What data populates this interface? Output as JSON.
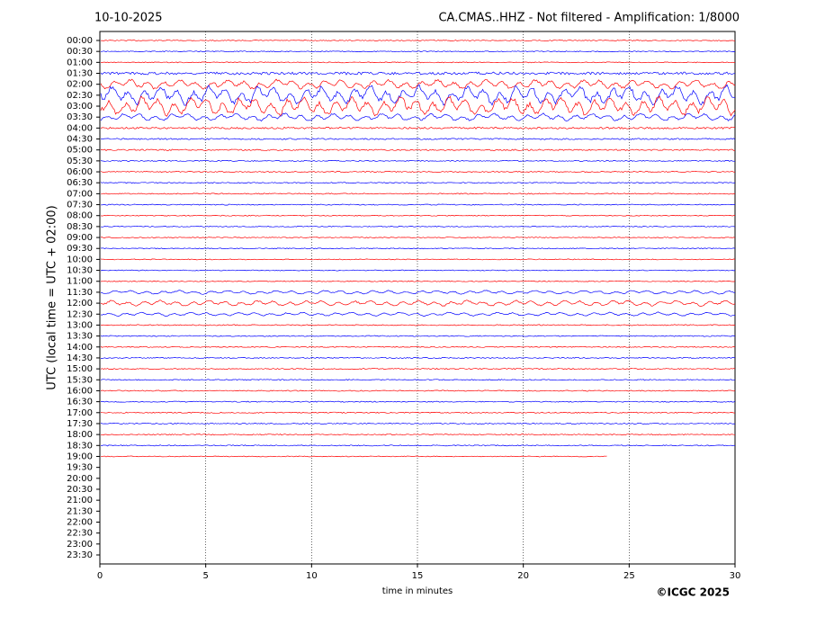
{
  "chart_data": {
    "type": "helicorder",
    "title_left": "10-10-2025",
    "title": "CA.CMAS..HHZ - Not filtered - Amplification: 1/8000",
    "y_label": "UTC (local time = UTC + 02:00)",
    "x_label": "time in minutes",
    "credit": "©ICGC 2025",
    "xlim": [
      0,
      30
    ],
    "xticks": [
      0,
      5,
      10,
      15,
      20,
      25,
      30
    ],
    "grid": true,
    "trace_colors": [
      "#ff0000",
      "#0000ff"
    ],
    "categories": [
      "00:00",
      "00:30",
      "01:00",
      "01:30",
      "02:00",
      "02:30",
      "03:00",
      "03:30",
      "04:00",
      "04:30",
      "05:00",
      "05:30",
      "06:00",
      "06:30",
      "07:00",
      "07:30",
      "08:00",
      "08:30",
      "09:00",
      "09:30",
      "10:00",
      "10:30",
      "11:00",
      "11:30",
      "12:00",
      "12:30",
      "13:00",
      "13:30",
      "14:00",
      "14:30",
      "15:00",
      "15:30",
      "16:00",
      "16:30",
      "17:00",
      "17:30",
      "18:00",
      "18:30",
      "19:00",
      "19:30",
      "20:00",
      "20:30",
      "21:00",
      "21:30",
      "22:00",
      "22:30",
      "23:00",
      "23:30"
    ],
    "durations": [
      30,
      30,
      30,
      30,
      30,
      30,
      30,
      30,
      30,
      30,
      30,
      30,
      30,
      30,
      30,
      30,
      30,
      30,
      30,
      30,
      30,
      30,
      30,
      30,
      30,
      30,
      30,
      30,
      30,
      30,
      30,
      30,
      30,
      30,
      30,
      30,
      30,
      30,
      24,
      null,
      null,
      null,
      null,
      null,
      null,
      null,
      null,
      null
    ],
    "amplitudes": [
      0.05,
      0.05,
      0.05,
      0.15,
      0.5,
      1.0,
      1.0,
      0.4,
      0.1,
      0.08,
      0.08,
      0.06,
      0.06,
      0.06,
      0.06,
      0.06,
      0.05,
      0.05,
      0.05,
      0.05,
      0.05,
      0.05,
      0.05,
      0.2,
      0.3,
      0.2,
      0.06,
      0.06,
      0.06,
      0.06,
      0.06,
      0.06,
      0.06,
      0.06,
      0.06,
      0.06,
      0.06,
      0.06,
      0.05,
      null,
      null,
      null,
      null,
      null,
      null,
      null,
      null,
      null
    ]
  }
}
